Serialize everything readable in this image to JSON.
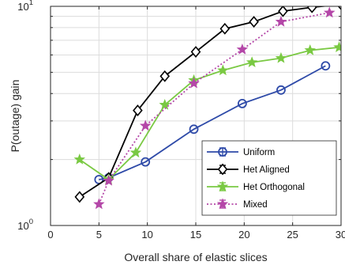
{
  "chart_data": {
    "type": "line",
    "xlabel": "Overall share of elastic slices",
    "ylabel": "P(outage) gain",
    "xlim": [
      0,
      30
    ],
    "ylim": [
      1,
      10
    ],
    "yscale": "log",
    "grid": true,
    "legend_position": "bottom-right",
    "x_ticks": [
      0,
      5,
      10,
      15,
      20,
      25,
      30
    ],
    "x_tick_labels": [
      "0",
      "5",
      "10",
      "15",
      "20",
      "25",
      "30"
    ],
    "y_ticks": [
      1,
      10
    ],
    "y_tick_base": "10",
    "y_tick_exponents": [
      "0",
      "1"
    ],
    "series": [
      {
        "name": "Uniform",
        "color": "#2e4aa8",
        "marker": "circle",
        "dash": "solid",
        "x": [
          5,
          6,
          9.8,
          14.8,
          19.8,
          23.8,
          28.4
        ],
        "y": [
          1.62,
          1.65,
          1.95,
          2.75,
          3.6,
          4.15,
          5.35
        ]
      },
      {
        "name": "Het Aligned",
        "color": "#000000",
        "marker": "diamond",
        "dash": "solid",
        "x": [
          3,
          6,
          9,
          11.8,
          15,
          18,
          21,
          24,
          27,
          30
        ],
        "y": [
          1.35,
          1.65,
          3.35,
          4.8,
          6.2,
          7.9,
          8.5,
          9.5,
          9.9,
          10.2
        ]
      },
      {
        "name": "Het Orthogonal",
        "color": "#7ac943",
        "marker": "star",
        "dash": "solid",
        "x": [
          3,
          6,
          8.8,
          11.8,
          14.8,
          17.8,
          20.8,
          23.8,
          26.8,
          29.8
        ],
        "y": [
          2.0,
          1.62,
          2.15,
          3.55,
          4.6,
          5.1,
          5.55,
          5.8,
          6.3,
          6.5
        ]
      },
      {
        "name": "Mixed",
        "color": "#b447a8",
        "marker": "star",
        "dash": "dotted",
        "x": [
          5,
          6,
          9.8,
          14.8,
          19.8,
          23.8,
          28.8
        ],
        "y": [
          1.25,
          1.6,
          2.85,
          4.45,
          6.35,
          8.5,
          9.35
        ]
      }
    ]
  }
}
